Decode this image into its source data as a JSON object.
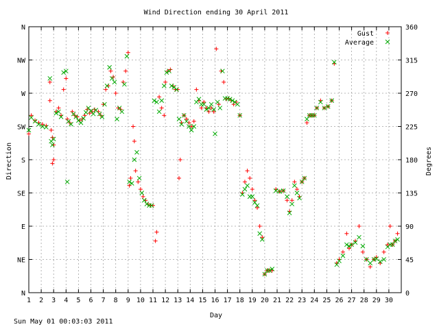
{
  "chart_data": {
    "type": "scatter",
    "title": "Wind Direction ending 30 April 2011",
    "xlabel": "Day",
    "ylabel_left": "Direction",
    "ylabel_right": "Degrees",
    "xlim": [
      1,
      31
    ],
    "ylim": [
      0,
      360
    ],
    "grid": true,
    "legend_position": "top-right",
    "x_ticks": [
      "1",
      "2",
      "3",
      "4",
      "5",
      "6",
      "7",
      "8",
      "9",
      "10",
      "11",
      "12",
      "13",
      "14",
      "15",
      "16",
      "17",
      "18",
      "19",
      "20",
      "21",
      "22",
      "23",
      "24",
      "25",
      "26",
      "27",
      "28",
      "29",
      "30"
    ],
    "y_ticks_left": [
      {
        "v": 0,
        "label": "N"
      },
      {
        "v": 45,
        "label": "NE"
      },
      {
        "v": 90,
        "label": "E"
      },
      {
        "v": 135,
        "label": "SE"
      },
      {
        "v": 180,
        "label": "S"
      },
      {
        "v": 225,
        "label": "SW"
      },
      {
        "v": 270,
        "label": "W"
      },
      {
        "v": 315,
        "label": "NW"
      },
      {
        "v": 360,
        "label": "N"
      }
    ],
    "y_ticks_right": [
      0,
      45,
      90,
      135,
      180,
      225,
      270,
      315,
      360
    ],
    "series": [
      {
        "name": "Gust",
        "marker": "+",
        "color": "#ff0000",
        "points": [
          [
            1.0,
            215
          ],
          [
            1.2,
            240
          ],
          [
            1.5,
            233
          ],
          [
            1.8,
            230
          ],
          [
            2.1,
            228
          ],
          [
            2.4,
            226
          ],
          [
            2.7,
            260
          ],
          [
            2.7,
            285
          ],
          [
            2.8,
            220
          ],
          [
            2.9,
            210
          ],
          [
            3.0,
            200
          ],
          [
            2.9,
            175
          ],
          [
            3.0,
            180
          ],
          [
            3.2,
            245
          ],
          [
            3.4,
            250
          ],
          [
            3.6,
            240
          ],
          [
            3.8,
            275
          ],
          [
            4.0,
            290
          ],
          [
            4.1,
            235
          ],
          [
            4.3,
            230
          ],
          [
            4.5,
            245
          ],
          [
            4.7,
            240
          ],
          [
            4.9,
            238
          ],
          [
            5.1,
            233
          ],
          [
            5.3,
            235
          ],
          [
            5.5,
            240
          ],
          [
            5.7,
            248
          ],
          [
            5.9,
            243
          ],
          [
            6.1,
            245
          ],
          [
            6.3,
            248
          ],
          [
            6.6,
            245
          ],
          [
            6.8,
            240
          ],
          [
            7.0,
            255
          ],
          [
            7.2,
            275
          ],
          [
            7.4,
            280
          ],
          [
            7.6,
            300
          ],
          [
            7.8,
            292
          ],
          [
            8.0,
            270
          ],
          [
            8.2,
            250
          ],
          [
            8.4,
            248
          ],
          [
            8.6,
            285
          ],
          [
            8.8,
            300
          ],
          [
            9.0,
            325
          ],
          [
            9.1,
            145
          ],
          [
            9.2,
            155
          ],
          [
            9.4,
            225
          ],
          [
            9.5,
            205
          ],
          [
            9.6,
            165
          ],
          [
            9.8,
            150
          ],
          [
            10.0,
            140
          ],
          [
            10.2,
            130
          ],
          [
            10.4,
            125
          ],
          [
            10.6,
            120
          ],
          [
            10.8,
            118
          ],
          [
            11.0,
            118
          ],
          [
            11.2,
            70
          ],
          [
            11.3,
            82
          ],
          [
            11.5,
            265
          ],
          [
            11.7,
            250
          ],
          [
            11.9,
            240
          ],
          [
            12.0,
            285
          ],
          [
            12.2,
            300
          ],
          [
            12.4,
            302
          ],
          [
            12.6,
            280
          ],
          [
            12.8,
            275
          ],
          [
            13.0,
            275
          ],
          [
            13.1,
            155
          ],
          [
            13.2,
            180
          ],
          [
            13.3,
            230
          ],
          [
            13.5,
            240
          ],
          [
            13.7,
            235
          ],
          [
            13.9,
            230
          ],
          [
            14.1,
            225
          ],
          [
            14.3,
            232
          ],
          [
            14.5,
            275
          ],
          [
            14.7,
            260
          ],
          [
            14.9,
            250
          ],
          [
            15.1,
            258
          ],
          [
            15.3,
            250
          ],
          [
            15.5,
            245
          ],
          [
            15.7,
            250
          ],
          [
            15.9,
            245
          ],
          [
            16.1,
            330
          ],
          [
            16.3,
            255
          ],
          [
            16.5,
            300
          ],
          [
            16.7,
            285
          ],
          [
            16.9,
            262
          ],
          [
            17.1,
            263
          ],
          [
            17.3,
            260
          ],
          [
            17.5,
            255
          ],
          [
            17.7,
            258
          ],
          [
            18.0,
            240
          ],
          [
            18.2,
            135
          ],
          [
            18.4,
            150
          ],
          [
            18.6,
            165
          ],
          [
            18.8,
            155
          ],
          [
            19.0,
            140
          ],
          [
            19.2,
            125
          ],
          [
            19.4,
            115
          ],
          [
            19.6,
            90
          ],
          [
            19.8,
            75
          ],
          [
            20.0,
            25
          ],
          [
            20.2,
            30
          ],
          [
            20.4,
            30
          ],
          [
            20.6,
            30
          ],
          [
            20.9,
            140
          ],
          [
            21.2,
            137
          ],
          [
            21.5,
            138
          ],
          [
            21.8,
            125
          ],
          [
            22.0,
            110
          ],
          [
            22.2,
            125
          ],
          [
            22.4,
            150
          ],
          [
            22.6,
            140
          ],
          [
            22.8,
            130
          ],
          [
            23.0,
            150
          ],
          [
            23.2,
            155
          ],
          [
            23.4,
            230
          ],
          [
            23.6,
            240
          ],
          [
            23.8,
            240
          ],
          [
            24.0,
            240
          ],
          [
            24.2,
            250
          ],
          [
            24.5,
            260
          ],
          [
            24.8,
            250
          ],
          [
            25.1,
            252
          ],
          [
            25.4,
            260
          ],
          [
            25.6,
            310
          ],
          [
            25.8,
            40
          ],
          [
            26.0,
            45
          ],
          [
            26.3,
            55
          ],
          [
            26.6,
            80
          ],
          [
            26.8,
            60
          ],
          [
            27.0,
            65
          ],
          [
            27.3,
            70
          ],
          [
            27.6,
            90
          ],
          [
            27.9,
            55
          ],
          [
            28.2,
            45
          ],
          [
            28.5,
            35
          ],
          [
            28.8,
            45
          ],
          [
            29.0,
            48
          ],
          [
            29.3,
            40
          ],
          [
            29.6,
            55
          ],
          [
            29.9,
            65
          ],
          [
            30.1,
            90
          ],
          [
            30.3,
            65
          ],
          [
            30.5,
            70
          ],
          [
            30.7,
            80
          ]
        ]
      },
      {
        "name": "Average",
        "marker": "x",
        "color": "#00aa00",
        "points": [
          [
            1.0,
            220
          ],
          [
            1.2,
            237
          ],
          [
            1.5,
            232
          ],
          [
            1.8,
            228
          ],
          [
            2.1,
            225
          ],
          [
            2.4,
            224
          ],
          [
            2.7,
            290
          ],
          [
            2.8,
            205
          ],
          [
            2.9,
            200
          ],
          [
            3.0,
            208
          ],
          [
            3.2,
            243
          ],
          [
            3.4,
            245
          ],
          [
            3.6,
            238
          ],
          [
            3.8,
            298
          ],
          [
            4.0,
            300
          ],
          [
            4.1,
            150
          ],
          [
            4.2,
            232
          ],
          [
            4.4,
            228
          ],
          [
            4.6,
            242
          ],
          [
            4.8,
            238
          ],
          [
            5.0,
            233
          ],
          [
            5.2,
            230
          ],
          [
            5.4,
            236
          ],
          [
            5.6,
            244
          ],
          [
            5.8,
            250
          ],
          [
            6.0,
            246
          ],
          [
            6.2,
            242
          ],
          [
            6.4,
            247
          ],
          [
            6.7,
            242
          ],
          [
            6.9,
            238
          ],
          [
            7.1,
            255
          ],
          [
            7.3,
            280
          ],
          [
            7.5,
            305
          ],
          [
            7.7,
            290
          ],
          [
            7.9,
            285
          ],
          [
            8.1,
            235
          ],
          [
            8.3,
            250
          ],
          [
            8.5,
            245
          ],
          [
            8.7,
            282
          ],
          [
            8.9,
            320
          ],
          [
            9.1,
            150
          ],
          [
            9.3,
            148
          ],
          [
            9.5,
            180
          ],
          [
            9.7,
            190
          ],
          [
            9.9,
            155
          ],
          [
            10.1,
            135
          ],
          [
            10.3,
            125
          ],
          [
            10.5,
            120
          ],
          [
            10.7,
            118
          ],
          [
            10.9,
            118
          ],
          [
            11.1,
            260
          ],
          [
            11.3,
            258
          ],
          [
            11.5,
            245
          ],
          [
            11.7,
            260
          ],
          [
            11.9,
            280
          ],
          [
            12.1,
            298
          ],
          [
            12.3,
            300
          ],
          [
            12.5,
            280
          ],
          [
            12.7,
            278
          ],
          [
            12.9,
            275
          ],
          [
            13.1,
            235
          ],
          [
            13.3,
            228
          ],
          [
            13.5,
            240
          ],
          [
            13.7,
            232
          ],
          [
            13.9,
            225
          ],
          [
            14.1,
            220
          ],
          [
            14.3,
            225
          ],
          [
            14.5,
            258
          ],
          [
            14.7,
            262
          ],
          [
            14.9,
            255
          ],
          [
            15.1,
            255
          ],
          [
            15.3,
            248
          ],
          [
            15.5,
            250
          ],
          [
            15.7,
            255
          ],
          [
            15.9,
            248
          ],
          [
            16.0,
            215
          ],
          [
            16.2,
            258
          ],
          [
            16.4,
            250
          ],
          [
            16.6,
            300
          ],
          [
            16.8,
            263
          ],
          [
            17.0,
            263
          ],
          [
            17.2,
            262
          ],
          [
            17.4,
            260
          ],
          [
            17.6,
            258
          ],
          [
            17.8,
            255
          ],
          [
            18.0,
            240
          ],
          [
            18.2,
            133
          ],
          [
            18.4,
            140
          ],
          [
            18.6,
            145
          ],
          [
            18.8,
            130
          ],
          [
            19.0,
            130
          ],
          [
            19.2,
            122
          ],
          [
            19.4,
            118
          ],
          [
            19.6,
            80
          ],
          [
            19.8,
            72
          ],
          [
            20.0,
            25
          ],
          [
            20.2,
            30
          ],
          [
            20.4,
            30
          ],
          [
            20.6,
            32
          ],
          [
            20.9,
            138
          ],
          [
            21.2,
            137
          ],
          [
            21.5,
            138
          ],
          [
            21.8,
            130
          ],
          [
            22.0,
            108
          ],
          [
            22.2,
            120
          ],
          [
            22.4,
            145
          ],
          [
            22.6,
            135
          ],
          [
            22.8,
            128
          ],
          [
            23.0,
            150
          ],
          [
            23.2,
            155
          ],
          [
            23.4,
            235
          ],
          [
            23.6,
            240
          ],
          [
            23.8,
            240
          ],
          [
            24.0,
            240
          ],
          [
            24.2,
            250
          ],
          [
            24.5,
            258
          ],
          [
            24.8,
            250
          ],
          [
            25.1,
            252
          ],
          [
            25.4,
            260
          ],
          [
            25.6,
            312
          ],
          [
            25.8,
            38
          ],
          [
            26.0,
            43
          ],
          [
            26.3,
            50
          ],
          [
            26.6,
            65
          ],
          [
            26.8,
            63
          ],
          [
            27.0,
            65
          ],
          [
            27.3,
            68
          ],
          [
            27.6,
            75
          ],
          [
            27.9,
            63
          ],
          [
            28.2,
            45
          ],
          [
            28.5,
            40
          ],
          [
            28.8,
            45
          ],
          [
            29.0,
            46
          ],
          [
            29.3,
            42
          ],
          [
            29.6,
            45
          ],
          [
            29.9,
            62
          ],
          [
            30.1,
            65
          ],
          [
            30.3,
            65
          ],
          [
            30.5,
            70
          ],
          [
            30.7,
            72
          ]
        ]
      }
    ]
  },
  "footer": {
    "timestamp": "Sun May 01 00:03:03 2011"
  }
}
